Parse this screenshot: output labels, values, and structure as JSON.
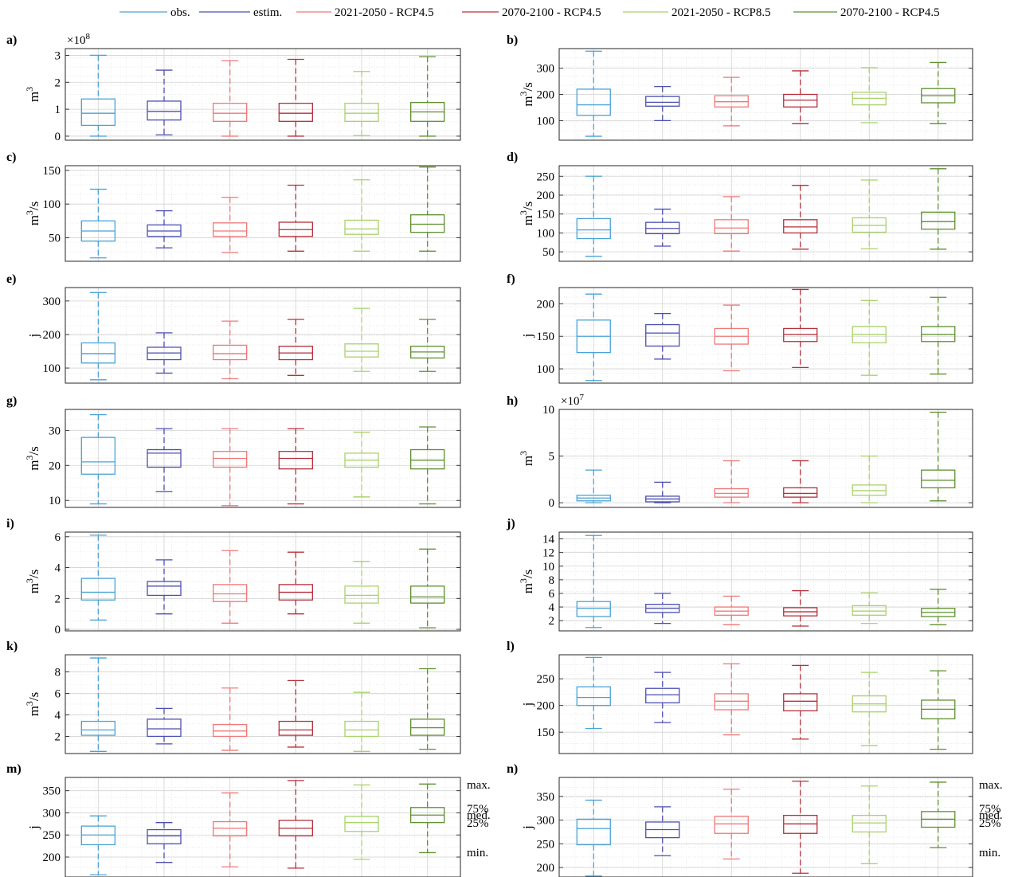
{
  "legend": [
    {
      "label": "obs.",
      "color": "#4aa3d6"
    },
    {
      "label": "estim.",
      "color": "#4b4fb0"
    },
    {
      "label": "2021-2050 - RCP4.5",
      "color": "#f07878"
    },
    {
      "label": "2070-2100 - RCP4.5",
      "color": "#b5303c"
    },
    {
      "label": "2021-2050 - RCP8.5",
      "color": "#a9d26a"
    },
    {
      "label": "2070-2100 - RCP4.5",
      "color": "#5f9130"
    }
  ],
  "key_labels": [
    "max.",
    "75%",
    "med.",
    "25%",
    "min."
  ],
  "chart_data": [
    {
      "type": "box",
      "panel_label": "a)",
      "ylabel": "m3",
      "multiplier": "×10^8",
      "ylim": [
        -0.15,
        3.25
      ],
      "yticks": [
        0,
        1,
        2,
        3
      ],
      "boxes": [
        {
          "min": 0,
          "q1": 0.4,
          "median": 0.85,
          "q3": 1.38,
          "max": 3.0
        },
        {
          "min": 0.05,
          "q1": 0.6,
          "median": 0.92,
          "q3": 1.3,
          "max": 2.45
        },
        {
          "min": 0,
          "q1": 0.55,
          "median": 0.85,
          "q3": 1.22,
          "max": 2.8
        },
        {
          "min": 0,
          "q1": 0.55,
          "median": 0.85,
          "q3": 1.22,
          "max": 2.85
        },
        {
          "min": 0.02,
          "q1": 0.55,
          "median": 0.85,
          "q3": 1.22,
          "max": 2.4
        },
        {
          "min": 0,
          "q1": 0.55,
          "median": 0.9,
          "q3": 1.25,
          "max": 2.95
        }
      ]
    },
    {
      "type": "box",
      "panel_label": "b)",
      "ylabel": "m3/s",
      "ylim": [
        25,
        375
      ],
      "yticks": [
        100,
        200,
        300
      ],
      "boxes": [
        {
          "min": 40,
          "q1": 120,
          "median": 160,
          "q3": 220,
          "max": 365
        },
        {
          "min": 100,
          "q1": 155,
          "median": 170,
          "q3": 192,
          "max": 230
        },
        {
          "min": 80,
          "q1": 152,
          "median": 172,
          "q3": 195,
          "max": 265
        },
        {
          "min": 88,
          "q1": 152,
          "median": 178,
          "q3": 200,
          "max": 290
        },
        {
          "min": 92,
          "q1": 160,
          "median": 185,
          "q3": 208,
          "max": 302
        },
        {
          "min": 88,
          "q1": 168,
          "median": 195,
          "q3": 222,
          "max": 322
        }
      ]
    },
    {
      "type": "box",
      "panel_label": "c)",
      "ylabel": "m3/s",
      "ylim": [
        15,
        157
      ],
      "yticks": [
        50,
        100,
        150
      ],
      "boxes": [
        {
          "min": 20,
          "q1": 45,
          "median": 60,
          "q3": 75,
          "max": 122
        },
        {
          "min": 35,
          "q1": 52,
          "median": 60,
          "q3": 69,
          "max": 90
        },
        {
          "min": 28,
          "q1": 52,
          "median": 60,
          "q3": 72,
          "max": 110
        },
        {
          "min": 30,
          "q1": 52,
          "median": 62,
          "q3": 73,
          "max": 128
        },
        {
          "min": 30,
          "q1": 55,
          "median": 63,
          "q3": 76,
          "max": 136
        },
        {
          "min": 30,
          "q1": 58,
          "median": 70,
          "q3": 84,
          "max": 155
        }
      ]
    },
    {
      "type": "box",
      "panel_label": "d)",
      "ylabel": "m3/s",
      "ylim": [
        25,
        278
      ],
      "yticks": [
        50,
        100,
        150,
        200,
        250
      ],
      "boxes": [
        {
          "min": 38,
          "q1": 85,
          "median": 108,
          "q3": 138,
          "max": 250
        },
        {
          "min": 65,
          "q1": 98,
          "median": 112,
          "q3": 128,
          "max": 163
        },
        {
          "min": 52,
          "q1": 98,
          "median": 113,
          "q3": 135,
          "max": 196
        },
        {
          "min": 57,
          "q1": 100,
          "median": 116,
          "q3": 135,
          "max": 226
        },
        {
          "min": 58,
          "q1": 102,
          "median": 120,
          "q3": 140,
          "max": 240
        },
        {
          "min": 57,
          "q1": 110,
          "median": 130,
          "q3": 155,
          "max": 270
        }
      ]
    },
    {
      "type": "box",
      "panel_label": "e)",
      "ylabel": "j",
      "ylim": [
        55,
        340
      ],
      "yticks": [
        100,
        200,
        300
      ],
      "boxes": [
        {
          "min": 65,
          "q1": 115,
          "median": 143,
          "q3": 175,
          "max": 325
        },
        {
          "min": 85,
          "q1": 125,
          "median": 145,
          "q3": 162,
          "max": 205
        },
        {
          "min": 68,
          "q1": 125,
          "median": 143,
          "q3": 168,
          "max": 240
        },
        {
          "min": 78,
          "q1": 125,
          "median": 145,
          "q3": 165,
          "max": 245
        },
        {
          "min": 90,
          "q1": 133,
          "median": 150,
          "q3": 172,
          "max": 278
        },
        {
          "min": 90,
          "q1": 130,
          "median": 148,
          "q3": 165,
          "max": 245
        }
      ]
    },
    {
      "type": "box",
      "panel_label": "f)",
      "ylabel": "j",
      "ylim": [
        78,
        225
      ],
      "yticks": [
        100,
        150,
        200
      ],
      "boxes": [
        {
          "min": 82,
          "q1": 125,
          "median": 150,
          "q3": 175,
          "max": 215
        },
        {
          "min": 115,
          "q1": 135,
          "median": 155,
          "q3": 168,
          "max": 185
        },
        {
          "min": 97,
          "q1": 138,
          "median": 150,
          "q3": 162,
          "max": 198
        },
        {
          "min": 102,
          "q1": 142,
          "median": 153,
          "q3": 162,
          "max": 222
        },
        {
          "min": 90,
          "q1": 140,
          "median": 153,
          "q3": 165,
          "max": 205
        },
        {
          "min": 92,
          "q1": 142,
          "median": 153,
          "q3": 165,
          "max": 210
        }
      ]
    },
    {
      "type": "box",
      "panel_label": "g)",
      "ylabel": "m3/s",
      "ylim": [
        8,
        36
      ],
      "yticks": [
        10,
        20,
        30
      ],
      "boxes": [
        {
          "min": 9,
          "q1": 17.5,
          "median": 21,
          "q3": 28,
          "max": 34.5
        },
        {
          "min": 12.5,
          "q1": 19.5,
          "median": 23.5,
          "q3": 24.5,
          "max": 30.5
        },
        {
          "min": 8.5,
          "q1": 19.5,
          "median": 22,
          "q3": 24,
          "max": 30.5
        },
        {
          "min": 9,
          "q1": 19,
          "median": 22,
          "q3": 24,
          "max": 30.5
        },
        {
          "min": 11,
          "q1": 19.5,
          "median": 21.5,
          "q3": 23.5,
          "max": 29.5
        },
        {
          "min": 9,
          "q1": 19,
          "median": 21.5,
          "q3": 24.5,
          "max": 31
        }
      ]
    },
    {
      "type": "box",
      "panel_label": "h)",
      "ylabel": "m3",
      "multiplier": "×10^7",
      "ylim": [
        -0.5,
        10
      ],
      "yticks": [
        0,
        5,
        10
      ],
      "boxes": [
        {
          "min": 0,
          "q1": 0.2,
          "median": 0.5,
          "q3": 0.8,
          "max": 3.5
        },
        {
          "min": 0,
          "q1": 0.1,
          "median": 0.4,
          "q3": 0.7,
          "max": 2.2
        },
        {
          "min": 0,
          "q1": 0.6,
          "median": 1.0,
          "q3": 1.5,
          "max": 4.5
        },
        {
          "min": 0,
          "q1": 0.6,
          "median": 1.0,
          "q3": 1.6,
          "max": 4.5
        },
        {
          "min": 0,
          "q1": 0.8,
          "median": 1.3,
          "q3": 1.9,
          "max": 5.0
        },
        {
          "min": 0.2,
          "q1": 1.6,
          "median": 2.4,
          "q3": 3.5,
          "max": 9.7
        }
      ]
    },
    {
      "type": "box",
      "panel_label": "i)",
      "ylabel": "m3/s",
      "ylim": [
        -0.1,
        6.3
      ],
      "yticks": [
        0,
        2,
        4,
        6
      ],
      "boxes": [
        {
          "min": 0.6,
          "q1": 1.9,
          "median": 2.4,
          "q3": 3.3,
          "max": 6.1
        },
        {
          "min": 1.0,
          "q1": 2.2,
          "median": 2.8,
          "q3": 3.1,
          "max": 4.5
        },
        {
          "min": 0.4,
          "q1": 1.8,
          "median": 2.3,
          "q3": 2.9,
          "max": 5.1
        },
        {
          "min": 1.0,
          "q1": 1.9,
          "median": 2.4,
          "q3": 2.9,
          "max": 5.0
        },
        {
          "min": 0.4,
          "q1": 1.7,
          "median": 2.2,
          "q3": 2.8,
          "max": 4.4
        },
        {
          "min": 0.1,
          "q1": 1.7,
          "median": 2.1,
          "q3": 2.8,
          "max": 5.2
        }
      ]
    },
    {
      "type": "box",
      "panel_label": "j)",
      "ylabel": "m3/s",
      "ylim": [
        0.5,
        15
      ],
      "yticks": [
        2,
        4,
        6,
        8,
        10,
        12,
        14
      ],
      "boxes": [
        {
          "min": 1,
          "q1": 2.6,
          "median": 3.8,
          "q3": 4.8,
          "max": 14.5
        },
        {
          "min": 1.6,
          "q1": 3.2,
          "median": 3.8,
          "q3": 4.4,
          "max": 6
        },
        {
          "min": 1.4,
          "q1": 2.8,
          "median": 3.4,
          "q3": 4,
          "max": 5.6
        },
        {
          "min": 1.2,
          "q1": 2.7,
          "median": 3.3,
          "q3": 3.9,
          "max": 6.4
        },
        {
          "min": 1.6,
          "q1": 2.8,
          "median": 3.4,
          "q3": 4.2,
          "max": 6.1
        },
        {
          "min": 1.4,
          "q1": 2.6,
          "median": 3.2,
          "q3": 3.8,
          "max": 6.6
        }
      ]
    },
    {
      "type": "box",
      "panel_label": "k)",
      "ylabel": "m3/s",
      "ylim": [
        0.4,
        9.6
      ],
      "yticks": [
        2,
        4,
        6,
        8
      ],
      "boxes": [
        {
          "min": 0.6,
          "q1": 2.1,
          "median": 2.6,
          "q3": 3.4,
          "max": 9.3
        },
        {
          "min": 1.3,
          "q1": 2.0,
          "median": 2.7,
          "q3": 3.6,
          "max": 4.6
        },
        {
          "min": 0.7,
          "q1": 2.0,
          "median": 2.5,
          "q3": 3.1,
          "max": 6.5
        },
        {
          "min": 1.0,
          "q1": 2.1,
          "median": 2.6,
          "q3": 3.4,
          "max": 7.2
        },
        {
          "min": 0.6,
          "q1": 2.0,
          "median": 2.6,
          "q3": 3.4,
          "max": 6.1
        },
        {
          "min": 0.8,
          "q1": 2.1,
          "median": 2.8,
          "q3": 3.6,
          "max": 8.3
        }
      ]
    },
    {
      "type": "box",
      "panel_label": "l)",
      "ylabel": "j",
      "ylim": [
        110,
        295
      ],
      "yticks": [
        150,
        200,
        250
      ],
      "boxes": [
        {
          "min": 157,
          "q1": 200,
          "median": 215,
          "q3": 235,
          "max": 290
        },
        {
          "min": 168,
          "q1": 205,
          "median": 220,
          "q3": 232,
          "max": 262
        },
        {
          "min": 145,
          "q1": 192,
          "median": 208,
          "q3": 222,
          "max": 278
        },
        {
          "min": 137,
          "q1": 190,
          "median": 208,
          "q3": 222,
          "max": 275
        },
        {
          "min": 125,
          "q1": 188,
          "median": 203,
          "q3": 218,
          "max": 262
        },
        {
          "min": 118,
          "q1": 175,
          "median": 193,
          "q3": 210,
          "max": 265
        }
      ]
    },
    {
      "type": "box",
      "panel_label": "m)",
      "ylabel": "j",
      "ylim": [
        155,
        380
      ],
      "yticks": [
        200,
        250,
        300,
        350
      ],
      "boxes": [
        {
          "min": 160,
          "q1": 228,
          "median": 250,
          "q3": 270,
          "max": 293
        },
        {
          "min": 188,
          "q1": 230,
          "median": 248,
          "q3": 262,
          "max": 278
        },
        {
          "min": 178,
          "q1": 248,
          "median": 265,
          "q3": 280,
          "max": 345
        },
        {
          "min": 175,
          "q1": 248,
          "median": 265,
          "q3": 283,
          "max": 373
        },
        {
          "min": 195,
          "q1": 258,
          "median": 278,
          "q3": 292,
          "max": 363
        },
        {
          "min": 210,
          "q1": 278,
          "median": 295,
          "q3": 312,
          "max": 365
        }
      ]
    },
    {
      "type": "box",
      "panel_label": "n)",
      "ylabel": "j",
      "ylim": [
        180,
        390
      ],
      "yticks": [
        200,
        250,
        300,
        350
      ],
      "boxes": [
        {
          "min": 182,
          "q1": 248,
          "median": 282,
          "q3": 302,
          "max": 342
        },
        {
          "min": 225,
          "q1": 263,
          "median": 280,
          "q3": 296,
          "max": 328
        },
        {
          "min": 218,
          "q1": 272,
          "median": 292,
          "q3": 308,
          "max": 365
        },
        {
          "min": 188,
          "q1": 272,
          "median": 292,
          "q3": 310,
          "max": 382
        },
        {
          "min": 208,
          "q1": 275,
          "median": 294,
          "q3": 310,
          "max": 372
        },
        {
          "min": 242,
          "q1": 285,
          "median": 302,
          "q3": 318,
          "max": 380
        }
      ]
    }
  ]
}
